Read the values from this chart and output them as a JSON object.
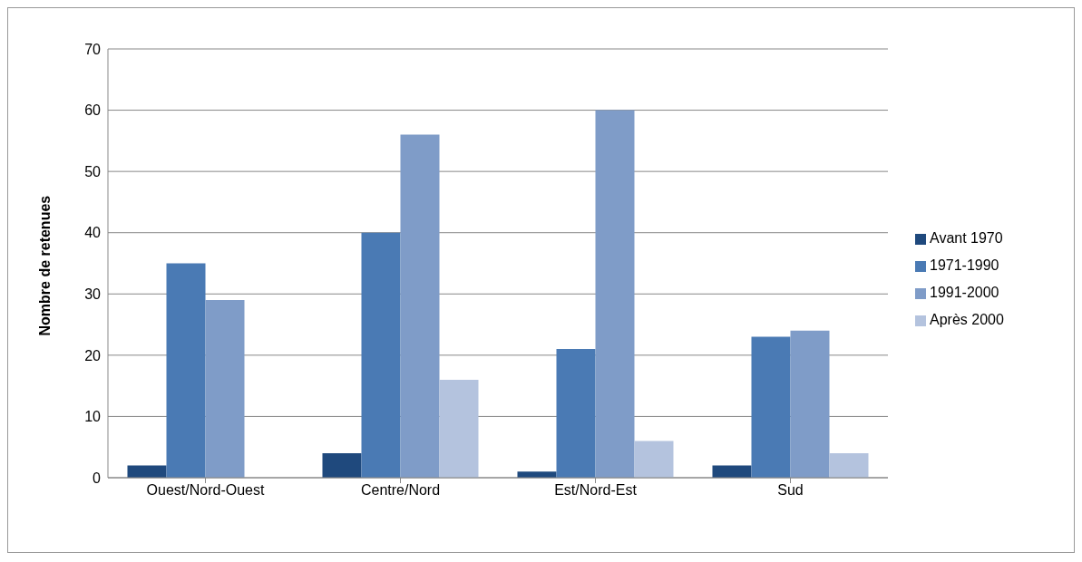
{
  "chart_data": {
    "type": "bar",
    "ylabel": "Nombre de retenues",
    "categories": [
      "Ouest/Nord-Ouest",
      "Centre/Nord",
      "Est/Nord-Est",
      "Sud"
    ],
    "series": [
      {
        "name": "Avant 1970",
        "color": "#1f497d",
        "values": [
          2,
          4,
          1,
          2
        ]
      },
      {
        "name": "1971-1990",
        "color": "#4a7ab4",
        "values": [
          35,
          40,
          21,
          23
        ]
      },
      {
        "name": "1991-2000",
        "color": "#7f9cc8",
        "values": [
          29,
          56,
          60,
          24
        ]
      },
      {
        "name": "Après 2000",
        "color": "#b4c3de",
        "values": [
          0,
          16,
          6,
          4
        ]
      }
    ],
    "ylim": [
      0,
      70
    ],
    "yticks": [
      0,
      10,
      20,
      30,
      40,
      50,
      60,
      70
    ],
    "grid": "y",
    "legend": "right"
  }
}
